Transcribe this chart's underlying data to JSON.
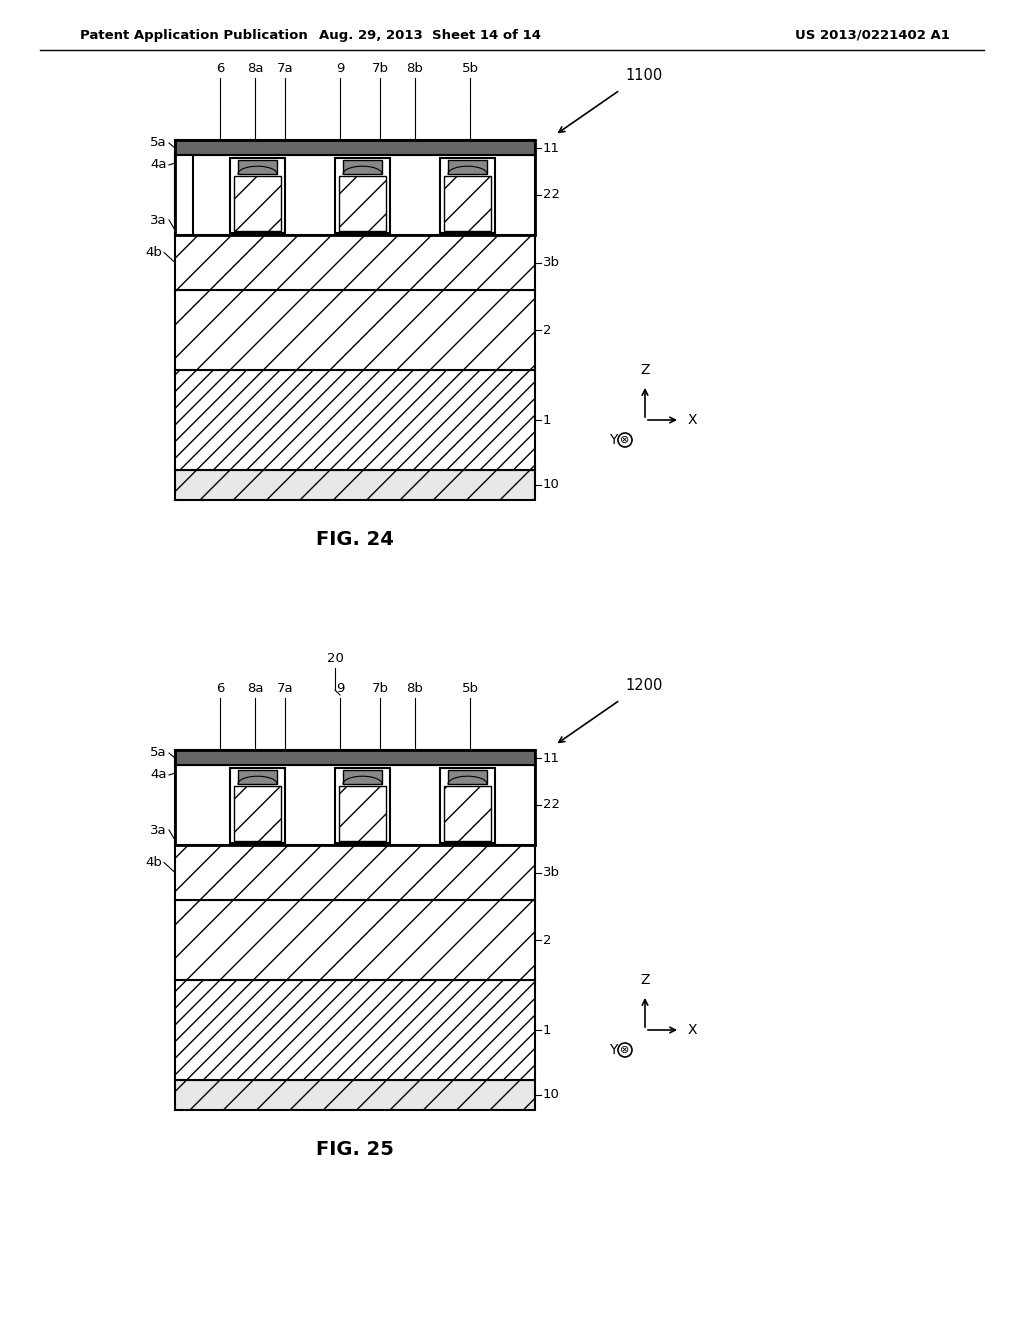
{
  "header_left": "Patent Application Publication",
  "header_mid": "Aug. 29, 2013  Sheet 14 of 14",
  "header_right": "US 2013/0221402 A1",
  "fig24_label": "FIG. 24",
  "fig25_label": "FIG. 25",
  "ref1100": "1100",
  "ref1200": "1200",
  "background": "#ffffff",
  "line_color": "#000000"
}
